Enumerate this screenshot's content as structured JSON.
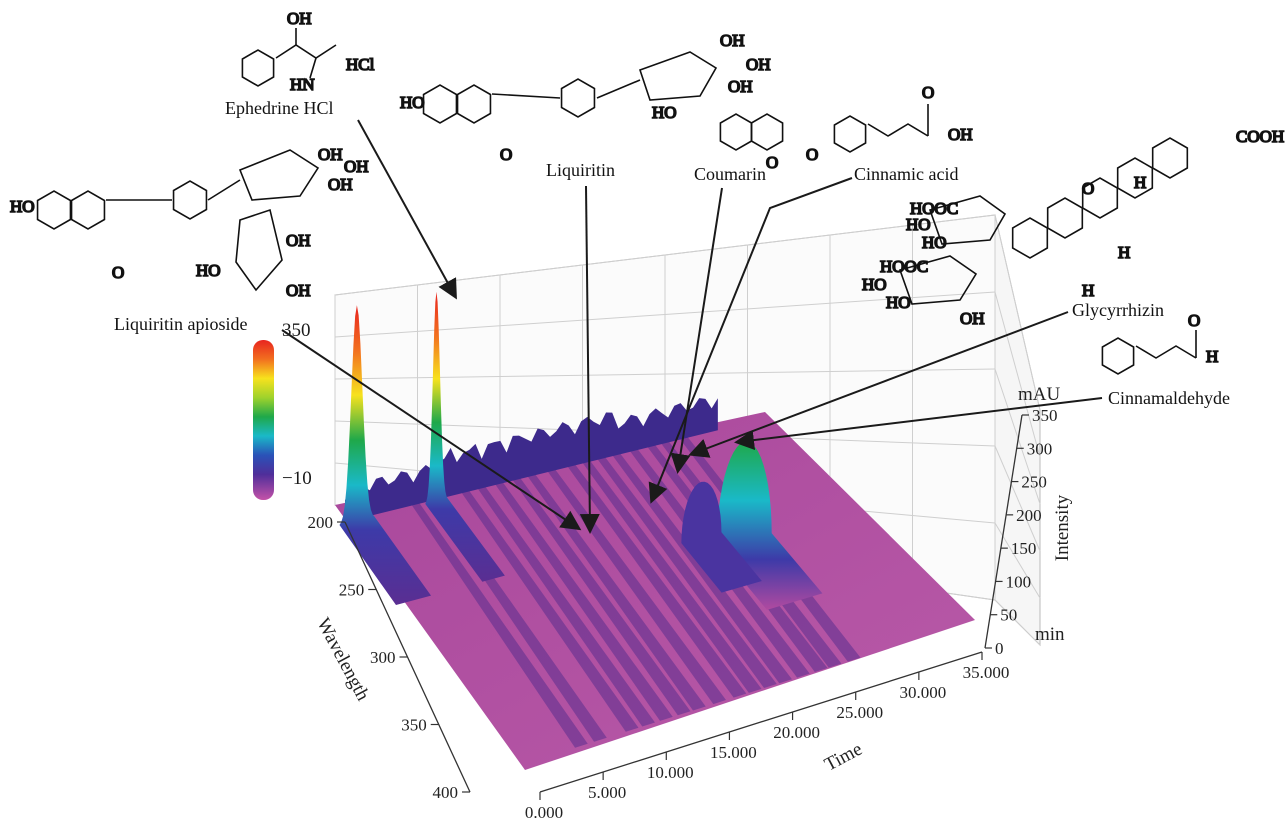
{
  "chart_data": {
    "type": "3d-surface",
    "title": "",
    "axes": {
      "x": {
        "label": "Time",
        "unit": "min",
        "range": [
          0,
          35
        ],
        "ticks": [
          "0.000",
          "5.000",
          "10.000",
          "15.000",
          "20.000",
          "25.000",
          "30.000",
          "35.000"
        ]
      },
      "y": {
        "label": "Wavelength",
        "range": [
          200,
          400
        ],
        "ticks": [
          "200",
          "250",
          "300",
          "350",
          "400"
        ]
      },
      "z": {
        "label": "Intensity",
        "unit": "mAU",
        "range": [
          -10,
          350
        ],
        "ticks": [
          "0",
          "50",
          "100",
          "150",
          "200",
          "250",
          "300",
          "350"
        ]
      }
    },
    "colorbar": {
      "max_label": "350",
      "min_label": "−10",
      "colors": [
        "#e8251f",
        "#f26f1f",
        "#f7e21d",
        "#9fd22c",
        "#1fa84a",
        "#1ab9c8",
        "#2a52b8",
        "#4f2e9a",
        "#c452a8"
      ]
    },
    "peaks": [
      {
        "name": "Ephedrine HCl",
        "time": 3.2,
        "wavelength": 210,
        "intensity": 350
      },
      {
        "name": "Liquiritin apioside",
        "time": 7.6,
        "wavelength": 215,
        "intensity": 340
      },
      {
        "name": "Liquiritin",
        "time": 13.8,
        "wavelength": 230,
        "intensity": 60
      },
      {
        "name": "Coumarin",
        "time": 19.0,
        "wavelength": 275,
        "intensity": 90
      },
      {
        "name": "Cinnamic acid",
        "time": 20.2,
        "wavelength": 275,
        "intensity": 70
      },
      {
        "name": "Glycyrrhizin",
        "time": 23.5,
        "wavelength": 250,
        "intensity": 110
      },
      {
        "name": "Cinnamaldehyde",
        "time": 25.6,
        "wavelength": 290,
        "intensity": 160
      }
    ]
  },
  "labels": {
    "ephedrine": "Ephedrine HCl",
    "liquiritin_apioside": "Liquiritin apioside",
    "liquiritin": "Liquiritin",
    "coumarin": "Coumarin",
    "cinnamic_acid": "Cinnamic acid",
    "glycyrrhizin": "Glycyrrhizin",
    "cinnamaldehyde": "Cinnamaldehyde"
  },
  "structures": {
    "oh": "OH",
    "ho": "HO",
    "hcl": "HCl",
    "hn": "HN",
    "o": "O",
    "h": "H",
    "cooh": "COOH",
    "hooc": "HOOC"
  },
  "colors": {
    "surface": "#b04aa0",
    "surface_dark": "#8d3b86",
    "grid": "#c7c7c7",
    "arrow": "#1a1a1a"
  }
}
